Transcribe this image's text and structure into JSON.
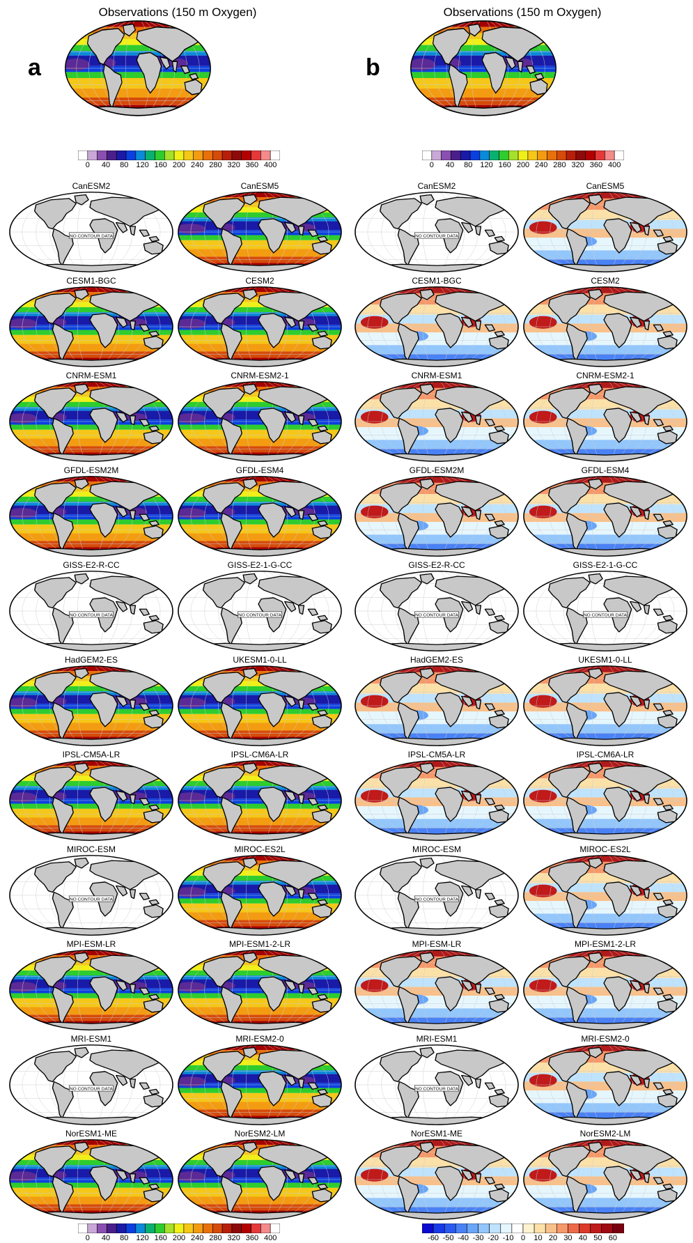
{
  "panel_a": {
    "letter": "a",
    "obs_title": "Observations (150 m Oxygen)",
    "colorbar_labels": [
      "0",
      "40",
      "80",
      "120",
      "160",
      "200",
      "240",
      "280",
      "320",
      "360",
      "400"
    ],
    "colorbar_colors": [
      "#ffffff",
      "#c9a8d8",
      "#8a4fb0",
      "#4b1f8a",
      "#1a1aa8",
      "#0a3fe0",
      "#0a8ad8",
      "#0ab070",
      "#2ecc2e",
      "#a6e02a",
      "#f0f018",
      "#f5c718",
      "#f39c12",
      "#e8710a",
      "#d64b0a",
      "#b81f0a",
      "#8e0a0a",
      "#b30000",
      "#e53939",
      "#f58a8a",
      "#ffffff"
    ],
    "models": [
      {
        "name": "CanESM2",
        "data": false
      },
      {
        "name": "CanESM5",
        "data": true
      },
      {
        "name": "CESM1-BGC",
        "data": true
      },
      {
        "name": "CESM2",
        "data": true
      },
      {
        "name": "CNRM-ESM1",
        "data": true
      },
      {
        "name": "CNRM-ESM2-1",
        "data": true
      },
      {
        "name": "GFDL-ESM2M",
        "data": true
      },
      {
        "name": "GFDL-ESM4",
        "data": true
      },
      {
        "name": "GISS-E2-R-CC",
        "data": false
      },
      {
        "name": "GISS-E2-1-G-CC",
        "data": false
      },
      {
        "name": "HadGEM2-ES",
        "data": true
      },
      {
        "name": "UKESM1-0-LL",
        "data": true
      },
      {
        "name": "IPSL-CM5A-LR",
        "data": true
      },
      {
        "name": "IPSL-CM6A-LR",
        "data": true
      },
      {
        "name": "MIROC-ESM",
        "data": false
      },
      {
        "name": "MIROC-ES2L",
        "data": true
      },
      {
        "name": "MPI-ESM-LR",
        "data": true
      },
      {
        "name": "MPI-ESM1-2-LR",
        "data": true
      },
      {
        "name": "MRI-ESM1",
        "data": false
      },
      {
        "name": "MRI-ESM2-0",
        "data": true
      },
      {
        "name": "NorESM1-ME",
        "data": true
      },
      {
        "name": "NorESM2-LM",
        "data": true
      }
    ]
  },
  "panel_b": {
    "letter": "b",
    "obs_title": "Observations (150 m Oxygen)",
    "colorbar_labels": [
      "0",
      "40",
      "80",
      "120",
      "160",
      "200",
      "240",
      "280",
      "320",
      "360",
      "400"
    ],
    "bias_colorbar_labels": [
      "-60",
      "-50",
      "-40",
      "-30",
      "-20",
      "-10",
      "0",
      "10",
      "20",
      "30",
      "40",
      "50",
      "60"
    ],
    "bias_colorbar_colors": [
      "#0a0ad0",
      "#1a3ae8",
      "#2a5af0",
      "#4a82f5",
      "#6aa6f8",
      "#93c6fb",
      "#bfe3fc",
      "#e6f6fd",
      "#ffffff",
      "#fdf3d0",
      "#fbe0a8",
      "#f8c08a",
      "#f5986a",
      "#ec6a4a",
      "#dc3a2a",
      "#c01a1a",
      "#9e0a12",
      "#7a0010"
    ],
    "models": [
      {
        "name": "CanESM2",
        "data": false
      },
      {
        "name": "CanESM5",
        "data": true
      },
      {
        "name": "CESM1-BGC",
        "data": true
      },
      {
        "name": "CESM2",
        "data": true
      },
      {
        "name": "CNRM-ESM1",
        "data": true
      },
      {
        "name": "CNRM-ESM2-1",
        "data": true
      },
      {
        "name": "GFDL-ESM2M",
        "data": true
      },
      {
        "name": "GFDL-ESM4",
        "data": true
      },
      {
        "name": "GISS-E2-R-CC",
        "data": false
      },
      {
        "name": "GISS-E2-1-G-CC",
        "data": false
      },
      {
        "name": "HadGEM2-ES",
        "data": true
      },
      {
        "name": "UKESM1-0-LL",
        "data": true
      },
      {
        "name": "IPSL-CM5A-LR",
        "data": true
      },
      {
        "name": "IPSL-CM6A-LR",
        "data": true
      },
      {
        "name": "MIROC-ESM",
        "data": false
      },
      {
        "name": "MIROC-ES2L",
        "data": true
      },
      {
        "name": "MPI-ESM-LR",
        "data": true
      },
      {
        "name": "MPI-ESM1-2-LR",
        "data": true
      },
      {
        "name": "MRI-ESM1",
        "data": false
      },
      {
        "name": "MRI-ESM2-0",
        "data": true
      },
      {
        "name": "NorESM1-ME",
        "data": true
      },
      {
        "name": "NorESM2-LM",
        "data": true
      }
    ]
  },
  "no_data_label": "NO CONTOUR DATA"
}
